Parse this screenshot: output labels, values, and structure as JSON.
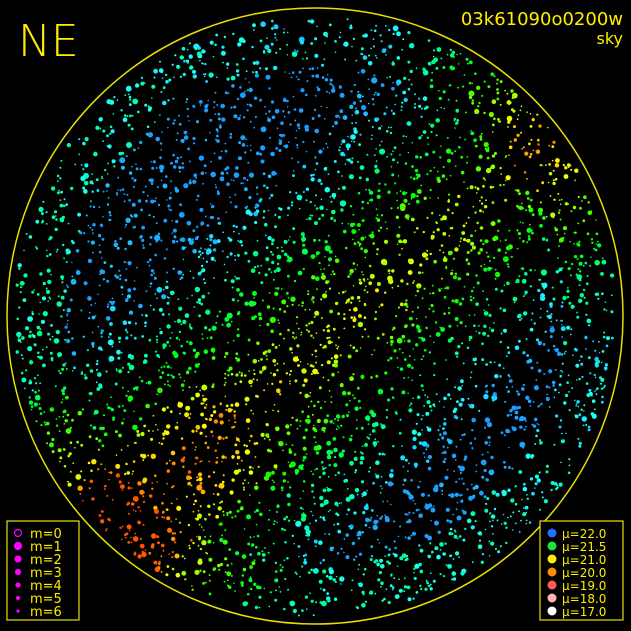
{
  "header": {
    "title": "NE",
    "frame_id": "03k61090o0200w",
    "image_type": "sky"
  },
  "magnitude_legend": {
    "items": [
      "m=0",
      "m=1",
      "m=2",
      "m=3",
      "m=4",
      "m=5",
      "m=6"
    ]
  },
  "brightness_legend": {
    "items": [
      {
        "label": "μ=22.0",
        "color": "#2a6cff"
      },
      {
        "label": "μ=21.5",
        "color": "#20e040"
      },
      {
        "label": "μ=21.0",
        "color": "#ffee00"
      },
      {
        "label": "μ=20.0",
        "color": "#ff8c00"
      },
      {
        "label": "μ=19.0",
        "color": "#ff5a5a"
      },
      {
        "label": "μ=18.0",
        "color": "#ffb4b4"
      },
      {
        "label": "μ=17.0",
        "color": "#ffffff"
      }
    ]
  }
}
